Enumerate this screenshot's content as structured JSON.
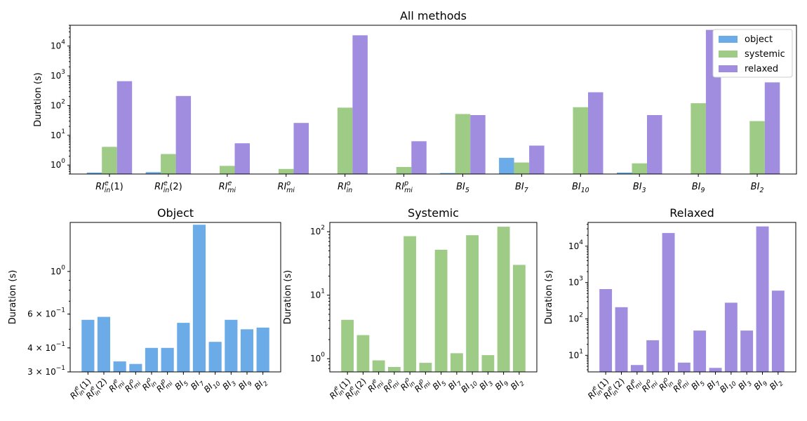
{
  "chart_data": [
    {
      "type": "bar",
      "title": "All methods",
      "ylabel": "Duration (s)",
      "xlabel": "",
      "yscale": "log",
      "ylim": [
        0.5,
        50000
      ],
      "yticks": [
        {
          "v": 1,
          "b": "10",
          "e": "0"
        },
        {
          "v": 10,
          "b": "10",
          "e": "1"
        },
        {
          "v": 100,
          "b": "10",
          "e": "2"
        },
        {
          "v": 1000,
          "b": "10",
          "e": "3"
        },
        {
          "v": 10000,
          "b": "10",
          "e": "4"
        }
      ],
      "categories": [
        {
          "base": "RI",
          "sub": "in",
          "sup": "e",
          "suffix": "(1)"
        },
        {
          "base": "RI",
          "sub": "in",
          "sup": "e",
          "suffix": "(2)"
        },
        {
          "base": "RI",
          "sub": "mi",
          "sup": "e",
          "suffix": ""
        },
        {
          "base": "RI",
          "sub": "mi",
          "sup": "o",
          "suffix": ""
        },
        {
          "base": "RI",
          "sub": "in",
          "sup": "o",
          "suffix": ""
        },
        {
          "base": "RI",
          "sub": "mi",
          "sup": "p",
          "suffix": ""
        },
        {
          "base": "BI",
          "sub": "5",
          "sup": "",
          "suffix": ""
        },
        {
          "base": "BI",
          "sub": "7",
          "sup": "",
          "suffix": ""
        },
        {
          "base": "BI",
          "sub": "10",
          "sup": "",
          "suffix": ""
        },
        {
          "base": "BI",
          "sub": "3",
          "sup": "",
          "suffix": ""
        },
        {
          "base": "BI",
          "sub": "9",
          "sup": "",
          "suffix": ""
        },
        {
          "base": "BI",
          "sub": "2",
          "sup": "",
          "suffix": ""
        }
      ],
      "series": [
        {
          "name": "object",
          "color": "#6aabe8",
          "values": [
            0.56,
            0.58,
            0.34,
            0.33,
            0.4,
            0.4,
            0.54,
            1.75,
            0.43,
            0.56,
            0.5,
            0.51
          ]
        },
        {
          "name": "systemic",
          "color": "#9ecb86",
          "values": [
            4.1,
            2.35,
            0.94,
            0.74,
            85,
            0.86,
            52,
            1.22,
            88,
            1.14,
            120,
            30
          ]
        },
        {
          "name": "relaxed",
          "color": "#a08ddf",
          "values": [
            660,
            210,
            5.4,
            26,
            23000,
            6.3,
            48,
            4.5,
            280,
            48,
            35000,
            600
          ]
        }
      ],
      "legend": "top-right",
      "grid": false
    },
    {
      "type": "bar",
      "title": "Object",
      "ylabel": "Duration (s)",
      "xlabel": "",
      "yscale": "log",
      "ylim": [
        0.3,
        1.8
      ],
      "yticks": [
        {
          "v": 0.3,
          "b": "3 × 10",
          "e": "−1"
        },
        {
          "v": 0.4,
          "b": "4 × 10",
          "e": "−1"
        },
        {
          "v": 0.6,
          "b": "6 × 10",
          "e": "−1"
        },
        {
          "v": 1,
          "b": "10",
          "e": "0"
        }
      ],
      "series": [
        {
          "name": "object",
          "color": "#6aabe8",
          "values": [
            0.56,
            0.58,
            0.34,
            0.33,
            0.4,
            0.4,
            0.54,
            1.75,
            0.43,
            0.56,
            0.5,
            0.51
          ]
        }
      ],
      "grid": false
    },
    {
      "type": "bar",
      "title": "Systemic",
      "ylabel": "Duration (s)",
      "xlabel": "",
      "yscale": "log",
      "ylim": [
        0.62,
        140
      ],
      "yticks": [
        {
          "v": 1,
          "b": "10",
          "e": "0"
        },
        {
          "v": 10,
          "b": "10",
          "e": "1"
        },
        {
          "v": 100,
          "b": "10",
          "e": "2"
        }
      ],
      "series": [
        {
          "name": "systemic",
          "color": "#9ecb86",
          "values": [
            4.1,
            2.35,
            0.94,
            0.74,
            85,
            0.86,
            52,
            1.22,
            88,
            1.14,
            120,
            30
          ]
        }
      ],
      "grid": false
    },
    {
      "type": "bar",
      "title": "Relaxed",
      "ylabel": "Duration (s)",
      "xlabel": "",
      "yscale": "log",
      "ylim": [
        3.5,
        45000
      ],
      "yticks": [
        {
          "v": 10,
          "b": "10",
          "e": "1"
        },
        {
          "v": 100,
          "b": "10",
          "e": "2"
        },
        {
          "v": 1000,
          "b": "10",
          "e": "3"
        },
        {
          "v": 10000,
          "b": "10",
          "e": "4"
        }
      ],
      "series": [
        {
          "name": "relaxed",
          "color": "#a08ddf",
          "values": [
            660,
            210,
            5.4,
            26,
            23000,
            6.3,
            48,
            4.5,
            280,
            48,
            35000,
            600
          ]
        }
      ],
      "grid": false
    }
  ]
}
